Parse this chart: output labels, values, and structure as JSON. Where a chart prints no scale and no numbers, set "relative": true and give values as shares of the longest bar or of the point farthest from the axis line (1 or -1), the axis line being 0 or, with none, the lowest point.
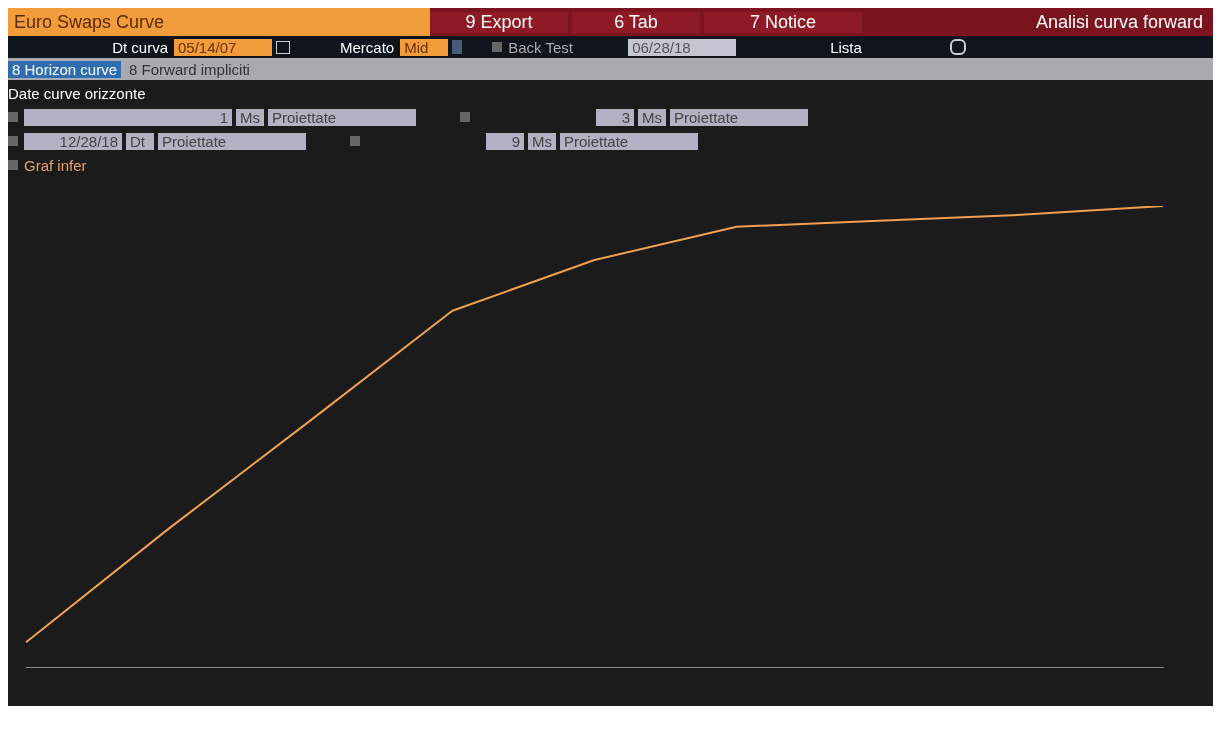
{
  "chart_data": {
    "type": "line",
    "title": "Euro Swaps Curve",
    "annotations": [
      "9 Export",
      "6 Tab",
      "7 Notice",
      "Analisi curva forward",
      "Dt curva",
      "05/14/07",
      "Mercato",
      "Mid",
      "Back Test",
      "06/28/18",
      "Lista",
      "8 Horizon curve",
      "8 Forward impliciti",
      "Date curve orizzonte",
      "1",
      "Ms",
      "Proiettate",
      "3",
      "Ms",
      "Proiettate",
      "12/28/18",
      "Dt",
      "Proiettate",
      "9",
      "Ms",
      "Proiettate",
      "Graf infer"
    ],
    "categories": [
      null,
      null,
      null,
      null,
      null,
      null,
      null,
      null,
      null
    ],
    "relative": true,
    "series": [
      {
        "color": "#f0a050",
        "values": [
          0.055,
          0.3,
          0.535,
          0.773,
          0.883,
          0.955,
          0.968,
          0.981,
          1.0
        ]
      }
    ],
    "grid": false,
    "legend": false,
    "marker": "none",
    "line_style": "solid"
  }
}
